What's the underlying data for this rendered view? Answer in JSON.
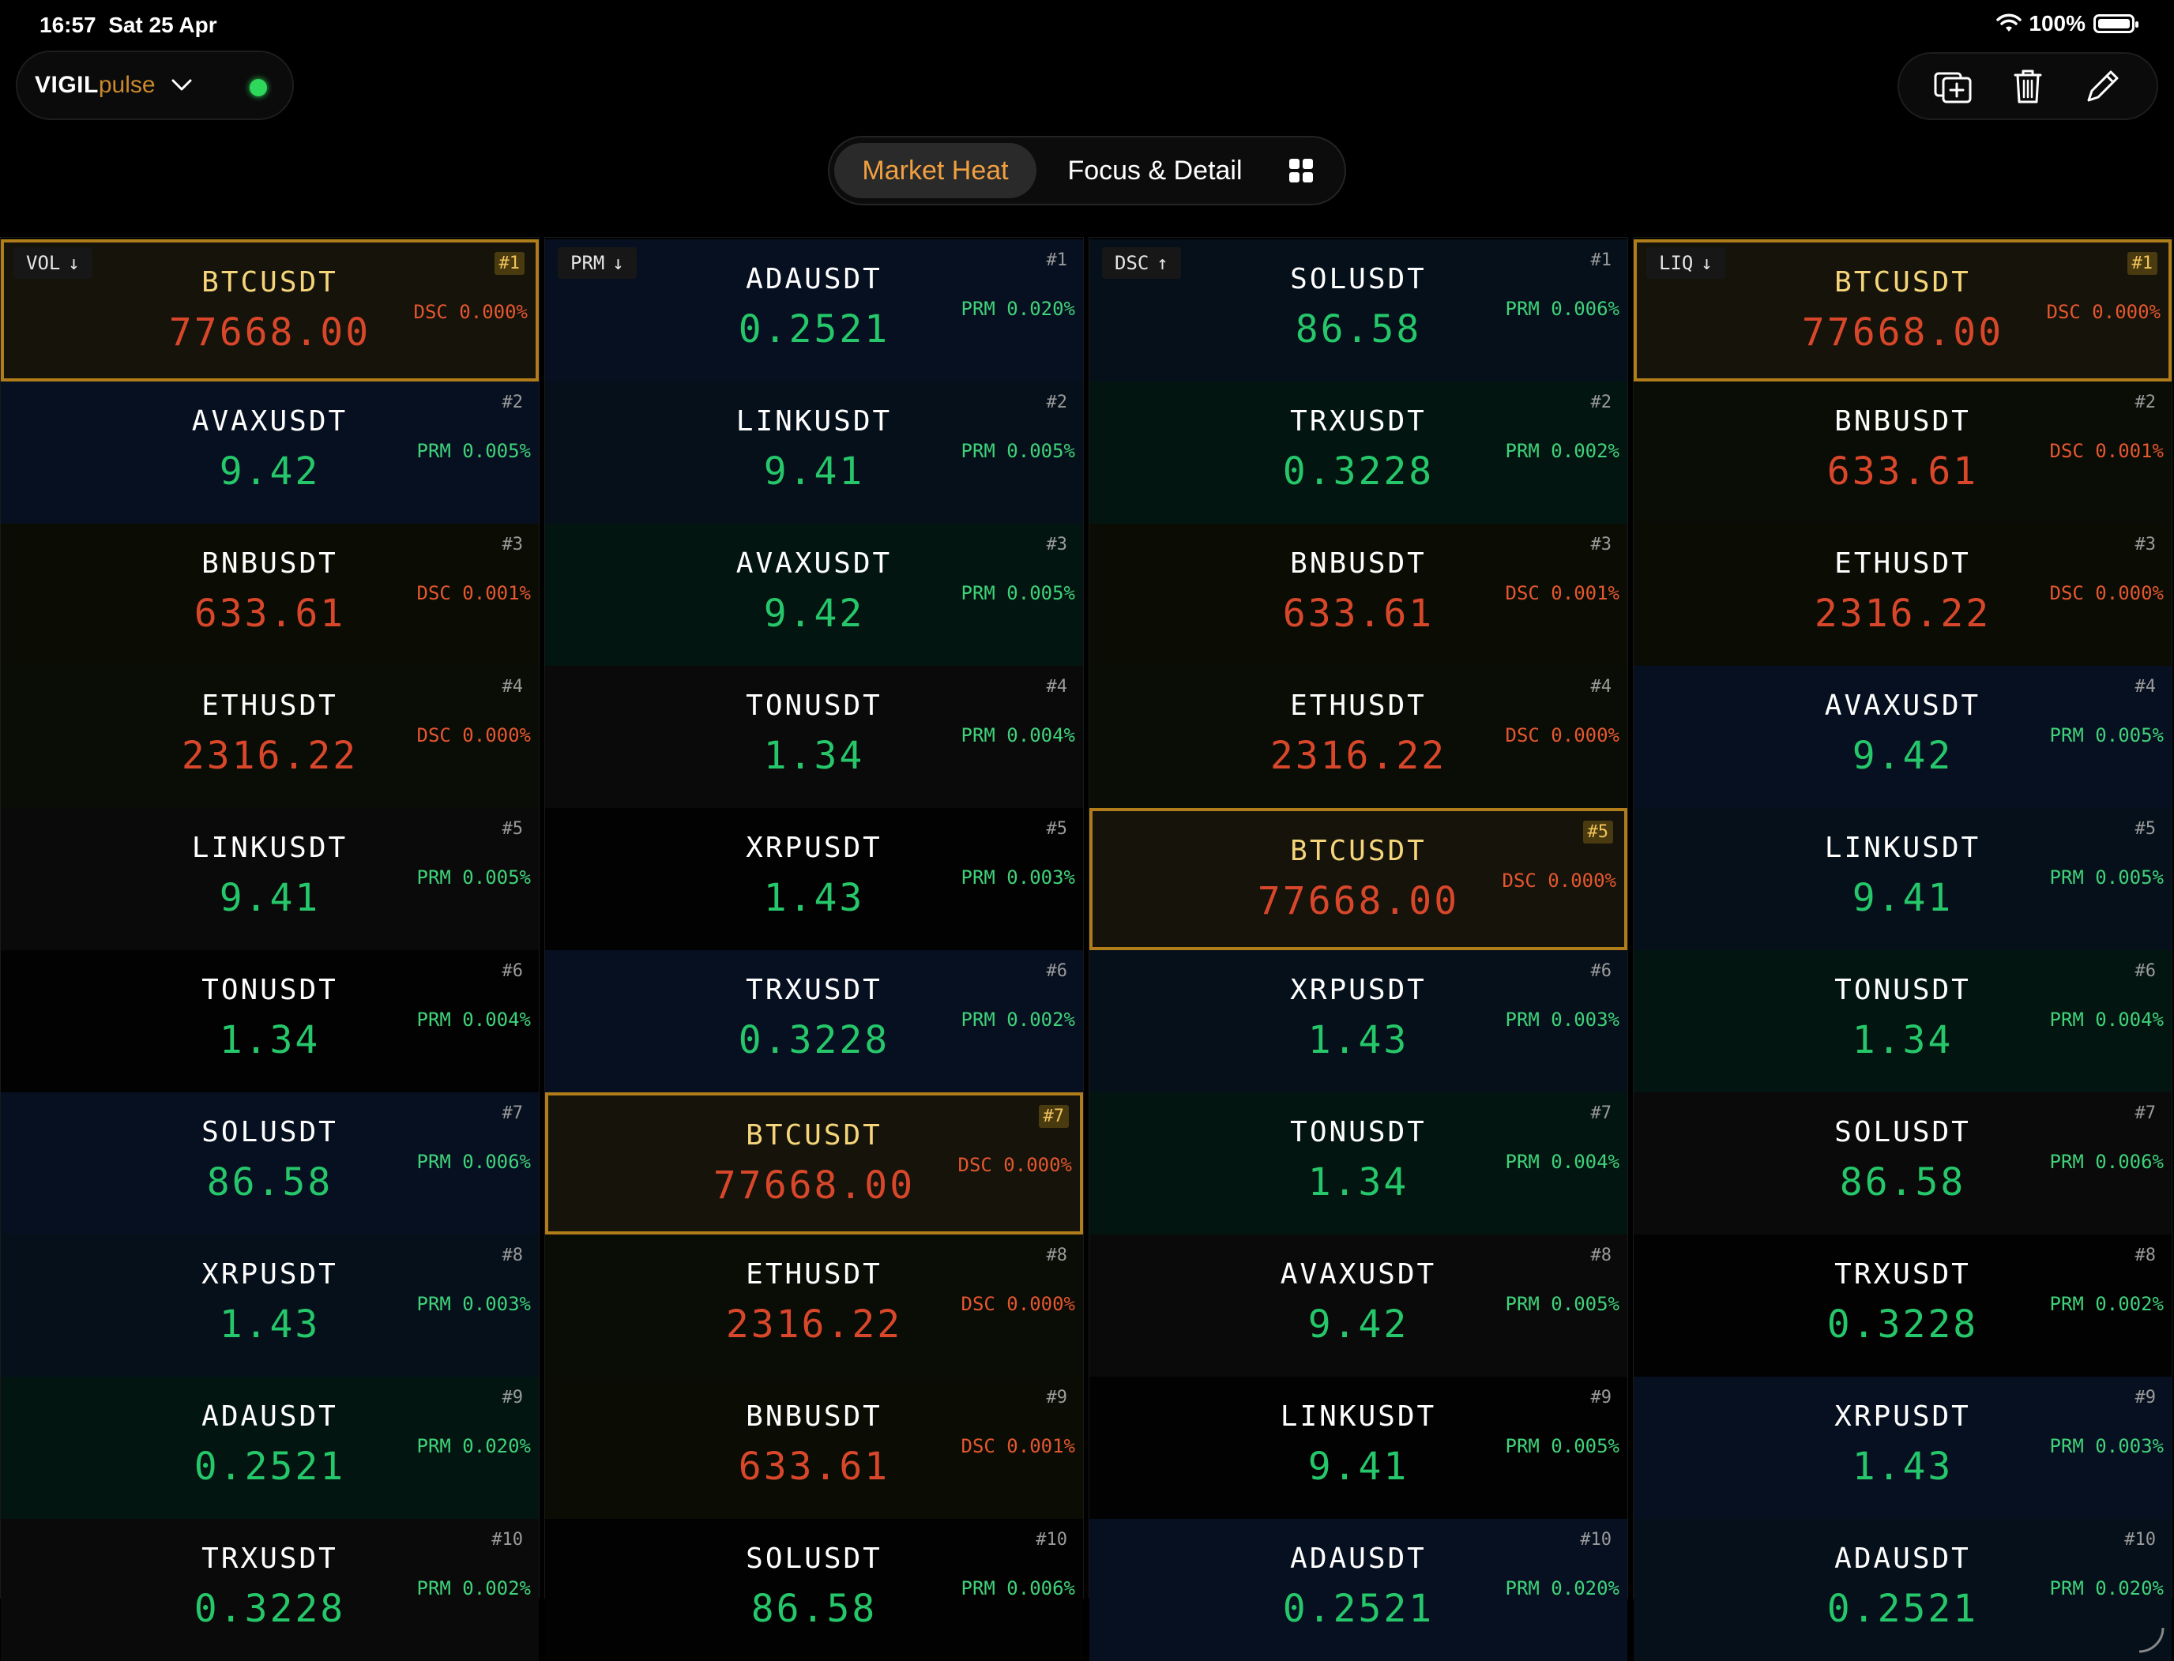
{
  "status": {
    "time": "16:57",
    "date": "Sat 25 Apr",
    "battery": "100%"
  },
  "brand": {
    "name_bold": "VIGIL",
    "name_light": "pulse"
  },
  "tabs": [
    {
      "label": "Market Heat",
      "active": true
    },
    {
      "label": "Focus & Detail",
      "active": false
    }
  ],
  "colors": {
    "up": "#26c76a",
    "down": "#d9472b",
    "highlight_border": "#b07d1a",
    "brand_accent": "#c98a2b"
  },
  "columns": [
    {
      "sort_label": "VOL",
      "sort_dir": "↓",
      "rows": [
        {
          "rank": "#1",
          "symbol": "BTCUSDT",
          "price": "77668.00",
          "dir": "dn",
          "metric": "DSC 0.000%",
          "hl": true
        },
        {
          "rank": "#2",
          "symbol": "AVAXUSDT",
          "price": "9.42",
          "dir": "up",
          "metric": "PRM 0.005%"
        },
        {
          "rank": "#3",
          "symbol": "BNBUSDT",
          "price": "633.61",
          "dir": "dn",
          "metric": "DSC 0.001%"
        },
        {
          "rank": "#4",
          "symbol": "ETHUSDT",
          "price": "2316.22",
          "dir": "dn",
          "metric": "DSC 0.000%"
        },
        {
          "rank": "#5",
          "symbol": "LINKUSDT",
          "price": "9.41",
          "dir": "up",
          "metric": "PRM 0.005%"
        },
        {
          "rank": "#6",
          "symbol": "TONUSDT",
          "price": "1.34",
          "dir": "up",
          "metric": "PRM 0.004%"
        },
        {
          "rank": "#7",
          "symbol": "SOLUSDT",
          "price": "86.58",
          "dir": "up",
          "metric": "PRM 0.006%"
        },
        {
          "rank": "#8",
          "symbol": "XRPUSDT",
          "price": "1.43",
          "dir": "up",
          "metric": "PRM 0.003%"
        },
        {
          "rank": "#9",
          "symbol": "ADAUSDT",
          "price": "0.2521",
          "dir": "up",
          "metric": "PRM 0.020%"
        },
        {
          "rank": "#10",
          "symbol": "TRXUSDT",
          "price": "0.3228",
          "dir": "up",
          "metric": "PRM 0.002%"
        }
      ]
    },
    {
      "sort_label": "PRM",
      "sort_dir": "↓",
      "rows": [
        {
          "rank": "#1",
          "symbol": "ADAUSDT",
          "price": "0.2521",
          "dir": "up",
          "metric": "PRM 0.020%"
        },
        {
          "rank": "#2",
          "symbol": "LINKUSDT",
          "price": "9.41",
          "dir": "up",
          "metric": "PRM 0.005%"
        },
        {
          "rank": "#3",
          "symbol": "AVAXUSDT",
          "price": "9.42",
          "dir": "up",
          "metric": "PRM 0.005%"
        },
        {
          "rank": "#4",
          "symbol": "TONUSDT",
          "price": "1.34",
          "dir": "up",
          "metric": "PRM 0.004%"
        },
        {
          "rank": "#5",
          "symbol": "XRPUSDT",
          "price": "1.43",
          "dir": "up",
          "metric": "PRM 0.003%"
        },
        {
          "rank": "#6",
          "symbol": "TRXUSDT",
          "price": "0.3228",
          "dir": "up",
          "metric": "PRM 0.002%"
        },
        {
          "rank": "#7",
          "symbol": "BTCUSDT",
          "price": "77668.00",
          "dir": "dn",
          "metric": "DSC 0.000%",
          "hl": true
        },
        {
          "rank": "#8",
          "symbol": "ETHUSDT",
          "price": "2316.22",
          "dir": "dn",
          "metric": "DSC 0.000%"
        },
        {
          "rank": "#9",
          "symbol": "BNBUSDT",
          "price": "633.61",
          "dir": "dn",
          "metric": "DSC 0.001%"
        },
        {
          "rank": "#10",
          "symbol": "SOLUSDT",
          "price": "86.58",
          "dir": "up",
          "metric": "PRM 0.006%"
        }
      ]
    },
    {
      "sort_label": "DSC",
      "sort_dir": "↑",
      "rows": [
        {
          "rank": "#1",
          "symbol": "SOLUSDT",
          "price": "86.58",
          "dir": "up",
          "metric": "PRM 0.006%"
        },
        {
          "rank": "#2",
          "symbol": "TRXUSDT",
          "price": "0.3228",
          "dir": "up",
          "metric": "PRM 0.002%"
        },
        {
          "rank": "#3",
          "symbol": "BNBUSDT",
          "price": "633.61",
          "dir": "dn",
          "metric": "DSC 0.001%"
        },
        {
          "rank": "#4",
          "symbol": "ETHUSDT",
          "price": "2316.22",
          "dir": "dn",
          "metric": "DSC 0.000%"
        },
        {
          "rank": "#5",
          "symbol": "BTCUSDT",
          "price": "77668.00",
          "dir": "dn",
          "metric": "DSC 0.000%",
          "hl": true
        },
        {
          "rank": "#6",
          "symbol": "XRPUSDT",
          "price": "1.43",
          "dir": "up",
          "metric": "PRM 0.003%"
        },
        {
          "rank": "#7",
          "symbol": "TONUSDT",
          "price": "1.34",
          "dir": "up",
          "metric": "PRM 0.004%"
        },
        {
          "rank": "#8",
          "symbol": "AVAXUSDT",
          "price": "9.42",
          "dir": "up",
          "metric": "PRM 0.005%"
        },
        {
          "rank": "#9",
          "symbol": "LINKUSDT",
          "price": "9.41",
          "dir": "up",
          "metric": "PRM 0.005%"
        },
        {
          "rank": "#10",
          "symbol": "ADAUSDT",
          "price": "0.2521",
          "dir": "up",
          "metric": "PRM 0.020%"
        }
      ]
    },
    {
      "sort_label": "LIQ",
      "sort_dir": "↓",
      "rows": [
        {
          "rank": "#1",
          "symbol": "BTCUSDT",
          "price": "77668.00",
          "dir": "dn",
          "metric": "DSC 0.000%",
          "hl": true
        },
        {
          "rank": "#2",
          "symbol": "BNBUSDT",
          "price": "633.61",
          "dir": "dn",
          "metric": "DSC 0.001%"
        },
        {
          "rank": "#3",
          "symbol": "ETHUSDT",
          "price": "2316.22",
          "dir": "dn",
          "metric": "DSC 0.000%"
        },
        {
          "rank": "#4",
          "symbol": "AVAXUSDT",
          "price": "9.42",
          "dir": "up",
          "metric": "PRM 0.005%"
        },
        {
          "rank": "#5",
          "symbol": "LINKUSDT",
          "price": "9.41",
          "dir": "up",
          "metric": "PRM 0.005%"
        },
        {
          "rank": "#6",
          "symbol": "TONUSDT",
          "price": "1.34",
          "dir": "up",
          "metric": "PRM 0.004%"
        },
        {
          "rank": "#7",
          "symbol": "SOLUSDT",
          "price": "86.58",
          "dir": "up",
          "metric": "PRM 0.006%"
        },
        {
          "rank": "#8",
          "symbol": "TRXUSDT",
          "price": "0.3228",
          "dir": "up",
          "metric": "PRM 0.002%"
        },
        {
          "rank": "#9",
          "symbol": "XRPUSDT",
          "price": "1.43",
          "dir": "up",
          "metric": "PRM 0.003%"
        },
        {
          "rank": "#10",
          "symbol": "ADAUSDT",
          "price": "0.2521",
          "dir": "up",
          "metric": "PRM 0.020%"
        }
      ]
    }
  ]
}
